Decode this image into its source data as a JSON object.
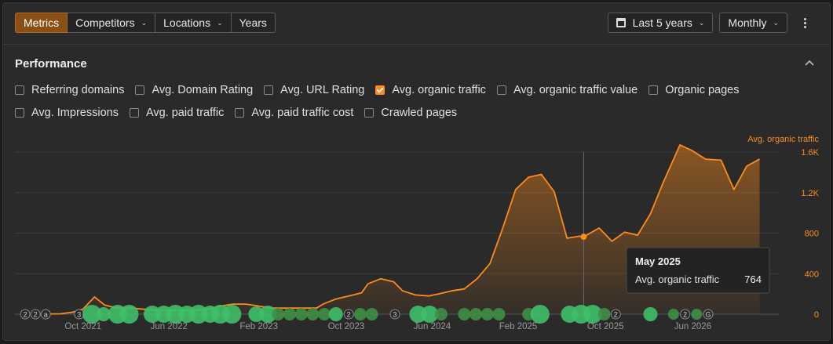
{
  "toolbar": {
    "tabs": [
      {
        "label": "Metrics",
        "active": true,
        "has_menu": false
      },
      {
        "label": "Competitors",
        "active": false,
        "has_menu": true
      },
      {
        "label": "Locations",
        "active": false,
        "has_menu": true
      },
      {
        "label": "Years",
        "active": false,
        "has_menu": false
      }
    ],
    "period_label": "Last 5 years",
    "interval_label": "Monthly"
  },
  "section": {
    "title": "Performance"
  },
  "metrics_row1": [
    {
      "label": "Referring domains",
      "checked": false
    },
    {
      "label": "Avg. Domain Rating",
      "checked": false
    },
    {
      "label": "Avg. URL Rating",
      "checked": false
    },
    {
      "label": "Avg. organic traffic",
      "checked": true
    },
    {
      "label": "Avg. organic traffic value",
      "checked": false
    },
    {
      "label": "Organic pages",
      "checked": false
    }
  ],
  "metrics_row2": [
    {
      "label": "Avg. Impressions",
      "checked": false
    },
    {
      "label": "Avg. paid traffic",
      "checked": false
    },
    {
      "label": "Avg. paid traffic cost",
      "checked": false
    },
    {
      "label": "Crawled pages",
      "checked": false
    }
  ],
  "chart_data": {
    "type": "area",
    "series": [
      {
        "name": "Avg. organic traffic",
        "color": "#ff8c1a",
        "values": [
          [
            2021.55,
            5
          ],
          [
            2021.65,
            3
          ],
          [
            2021.75,
            4
          ],
          [
            2021.85,
            20
          ],
          [
            2021.93,
            50
          ],
          [
            2022.02,
            170
          ],
          [
            2022.1,
            90
          ],
          [
            2022.2,
            60
          ],
          [
            2022.3,
            60
          ],
          [
            2022.4,
            50
          ],
          [
            2022.5,
            40
          ],
          [
            2022.6,
            40
          ],
          [
            2022.7,
            40
          ],
          [
            2022.8,
            40
          ],
          [
            2022.9,
            50
          ],
          [
            2023.0,
            80
          ],
          [
            2023.1,
            100
          ],
          [
            2023.2,
            100
          ],
          [
            2023.3,
            80
          ],
          [
            2023.4,
            60
          ],
          [
            2023.5,
            60
          ],
          [
            2023.6,
            60
          ],
          [
            2023.7,
            60
          ],
          [
            2023.75,
            60
          ],
          [
            2023.8,
            100
          ],
          [
            2023.9,
            150
          ],
          [
            2024.0,
            180
          ],
          [
            2024.1,
            210
          ],
          [
            2024.15,
            300
          ],
          [
            2024.25,
            350
          ],
          [
            2024.35,
            320
          ],
          [
            2024.42,
            230
          ],
          [
            2024.52,
            190
          ],
          [
            2024.62,
            180
          ],
          [
            2024.7,
            200
          ],
          [
            2024.8,
            230
          ],
          [
            2024.9,
            250
          ],
          [
            2025.0,
            350
          ],
          [
            2025.1,
            500
          ],
          [
            2025.2,
            850
          ],
          [
            2025.3,
            1230
          ],
          [
            2025.4,
            1350
          ],
          [
            2025.5,
            1380
          ],
          [
            2025.6,
            1210
          ],
          [
            2025.7,
            750
          ],
          [
            2025.8,
            770
          ],
          [
            2025.83,
            764
          ],
          [
            2025.95,
            850
          ],
          [
            2026.05,
            720
          ],
          [
            2026.15,
            810
          ],
          [
            2026.25,
            780
          ],
          [
            2026.35,
            990
          ],
          [
            2026.45,
            1300
          ],
          [
            2026.58,
            1670
          ],
          [
            2026.68,
            1610
          ],
          [
            2026.78,
            1530
          ],
          [
            2026.9,
            1520
          ],
          [
            2027.0,
            1230
          ],
          [
            2027.1,
            1460
          ],
          [
            2027.2,
            1530
          ]
        ]
      }
    ],
    "x_ticks": [
      {
        "x": 2021.93,
        "label": "Oct 2021"
      },
      {
        "x": 2022.6,
        "label": "Jun 2022"
      },
      {
        "x": 2023.3,
        "label": "Feb 2023"
      },
      {
        "x": 2023.98,
        "label": "Oct 2023"
      },
      {
        "x": 2024.65,
        "label": "Jun 2024"
      },
      {
        "x": 2025.32,
        "label": "Feb 2025"
      },
      {
        "x": 2026.0,
        "label": "Oct 2025"
      },
      {
        "x": 2026.68,
        "label": "Jun 2026"
      }
    ],
    "y_ticks": [
      0,
      400,
      800,
      "1.2K",
      "1.6K"
    ],
    "y_tick_values": [
      0,
      400,
      800,
      1200,
      1600
    ],
    "ylim": [
      0,
      1600
    ],
    "xlim": [
      2021.4,
      2027.35
    ],
    "y_axis_label": "Avg. organic traffic",
    "axis_color": "#ff8c1a",
    "grid": true,
    "highlight": {
      "x": 2025.83,
      "value": 764,
      "title": "May 2025",
      "label": "Avg. organic traffic",
      "value_text": "764"
    },
    "annotations": [
      {
        "x": 2021.48,
        "label": "2",
        "kind": "grey"
      },
      {
        "x": 2021.56,
        "label": "2",
        "kind": "grey"
      },
      {
        "x": 2021.64,
        "label": "a",
        "kind": "grey"
      },
      {
        "x": 2021.9,
        "label": "3",
        "kind": "grey"
      },
      {
        "x": 2022.0,
        "label": "",
        "kind": "green",
        "size": 12
      },
      {
        "x": 2022.09,
        "label": "",
        "kind": "green",
        "size": 9
      },
      {
        "x": 2022.2,
        "label": "",
        "kind": "green",
        "size": 12
      },
      {
        "x": 2022.29,
        "label": "",
        "kind": "green",
        "size": 12
      },
      {
        "x": 2022.47,
        "label": "",
        "kind": "green",
        "size": 11
      },
      {
        "x": 2022.56,
        "label": "",
        "kind": "green",
        "size": 11
      },
      {
        "x": 2022.65,
        "label": "",
        "kind": "green",
        "size": 12
      },
      {
        "x": 2022.74,
        "label": "",
        "kind": "green",
        "size": 11
      },
      {
        "x": 2022.83,
        "label": "",
        "kind": "green",
        "size": 12
      },
      {
        "x": 2022.92,
        "label": "",
        "kind": "green",
        "size": 11
      },
      {
        "x": 2023.0,
        "label": "",
        "kind": "green",
        "size": 12
      },
      {
        "x": 2023.09,
        "label": "",
        "kind": "green",
        "size": 12
      },
      {
        "x": 2023.28,
        "label": "",
        "kind": "green",
        "size": 10
      },
      {
        "x": 2023.37,
        "label": "",
        "kind": "green",
        "size": 11
      },
      {
        "x": 2023.45,
        "label": "",
        "kind": "green-dim",
        "size": 8
      },
      {
        "x": 2023.54,
        "label": "",
        "kind": "green-dim",
        "size": 8
      },
      {
        "x": 2023.63,
        "label": "",
        "kind": "green-dim",
        "size": 8
      },
      {
        "x": 2023.72,
        "label": "",
        "kind": "green-dim",
        "size": 8
      },
      {
        "x": 2023.81,
        "label": "",
        "kind": "green-dim",
        "size": 8
      },
      {
        "x": 2023.9,
        "label": "",
        "kind": "green",
        "size": 9
      },
      {
        "x": 2024.0,
        "label": "2",
        "kind": "grey"
      },
      {
        "x": 2024.09,
        "label": "",
        "kind": "green-dim",
        "size": 8
      },
      {
        "x": 2024.18,
        "label": "",
        "kind": "green-dim",
        "size": 8
      },
      {
        "x": 2024.36,
        "label": "3",
        "kind": "grey"
      },
      {
        "x": 2024.54,
        "label": "",
        "kind": "green",
        "size": 11
      },
      {
        "x": 2024.63,
        "label": "",
        "kind": "green",
        "size": 11
      },
      {
        "x": 2024.72,
        "label": "",
        "kind": "green-dim",
        "size": 8
      },
      {
        "x": 2024.9,
        "label": "",
        "kind": "green-dim",
        "size": 8
      },
      {
        "x": 2024.99,
        "label": "",
        "kind": "green-dim",
        "size": 8
      },
      {
        "x": 2025.08,
        "label": "",
        "kind": "green-dim",
        "size": 8
      },
      {
        "x": 2025.17,
        "label": "",
        "kind": "green-dim",
        "size": 8
      },
      {
        "x": 2025.4,
        "label": "",
        "kind": "green-dim",
        "size": 8
      },
      {
        "x": 2025.49,
        "label": "",
        "kind": "green",
        "size": 12
      },
      {
        "x": 2025.72,
        "label": "",
        "kind": "green",
        "size": 11
      },
      {
        "x": 2025.81,
        "label": "",
        "kind": "green",
        "size": 12
      },
      {
        "x": 2025.9,
        "label": "",
        "kind": "green",
        "size": 12
      },
      {
        "x": 2025.99,
        "label": "",
        "kind": "green-dim",
        "size": 8
      },
      {
        "x": 2026.08,
        "label": "2",
        "kind": "grey"
      },
      {
        "x": 2026.35,
        "label": "",
        "kind": "green",
        "size": 9
      },
      {
        "x": 2026.53,
        "label": "",
        "kind": "green-dim",
        "size": 7
      },
      {
        "x": 2026.62,
        "label": "2",
        "kind": "grey"
      },
      {
        "x": 2026.71,
        "label": "",
        "kind": "green-dim",
        "size": 7
      },
      {
        "x": 2026.8,
        "label": "G",
        "kind": "grey"
      }
    ]
  }
}
